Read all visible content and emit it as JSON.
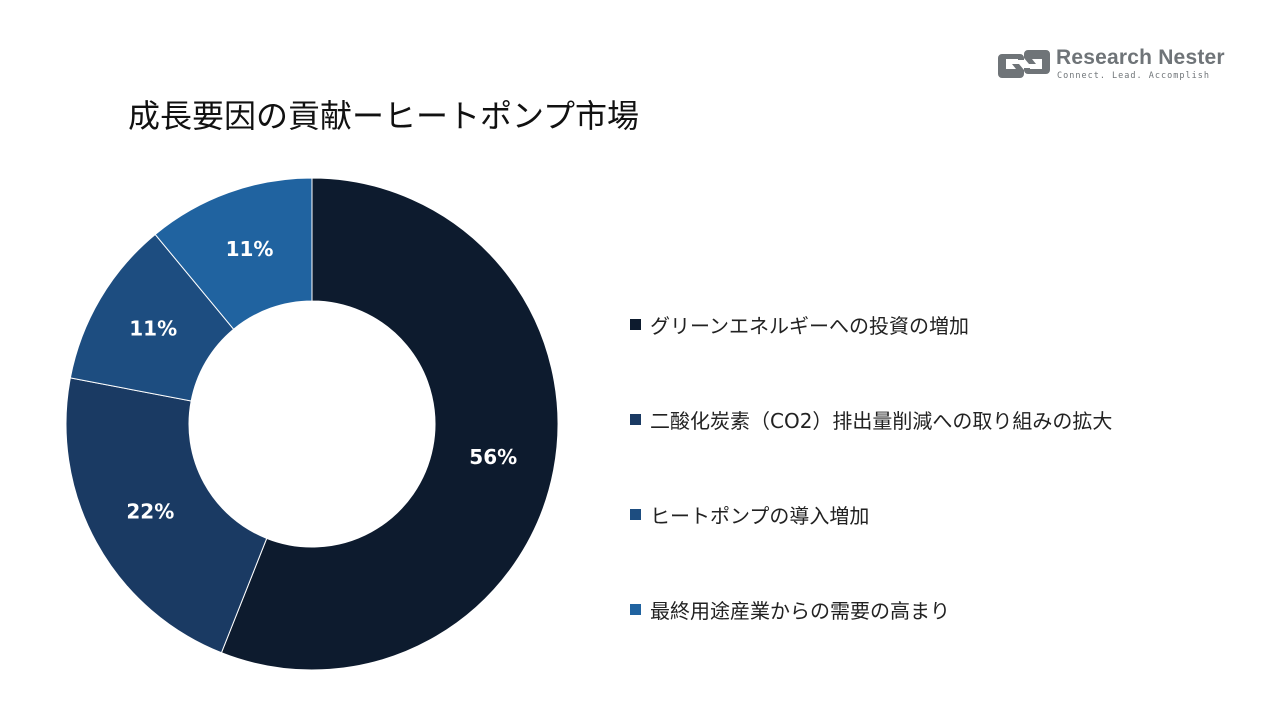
{
  "logo": {
    "name": "Research Nester",
    "tagline": "Connect. Lead. Accomplish"
  },
  "colors": {
    "series": [
      "#0d1b2e",
      "#1a3a63",
      "#1d4d80",
      "#2063a0"
    ],
    "logo": "#6f7478"
  },
  "chart_data": {
    "type": "pie",
    "variant": "donut",
    "title": "成長要因の貢献ーヒートポンプ市場",
    "legend_position": "right",
    "start_angle": "top, clockwise",
    "series": [
      {
        "name": "グリーンエネルギーへの投資の増加",
        "value": 56,
        "label": "56%"
      },
      {
        "name": "二酸化炭素（CO2）排出量削減への取り組みの拡大",
        "value": 22,
        "label": "22%"
      },
      {
        "name": "ヒートポンプの導入増加",
        "value": 11,
        "label": "11%"
      },
      {
        "name": "最終用途産業からの需要の高まり",
        "value": 11,
        "label": "11%"
      }
    ]
  }
}
